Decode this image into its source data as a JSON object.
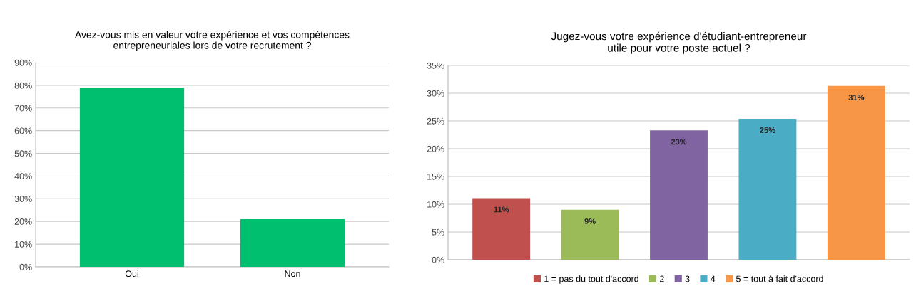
{
  "chart_data": [
    {
      "type": "bar",
      "title": "Avez-vous mis en valeur votre expérience et vos compétences\nentrepreneuriales lors de votre recrutement ?",
      "categories": [
        "Oui",
        "Non"
      ],
      "values": [
        79,
        21
      ],
      "color": "#00bf6f",
      "ylim": [
        0,
        90
      ],
      "yticks": [
        {
          "value": 0,
          "label": "0%"
        },
        {
          "value": 10,
          "label": "10%"
        },
        {
          "value": 20,
          "label": "20%"
        },
        {
          "value": 30,
          "label": "30%"
        },
        {
          "value": 40,
          "label": "40%"
        },
        {
          "value": 50,
          "label": "50%"
        },
        {
          "value": 60,
          "label": "60%"
        },
        {
          "value": 70,
          "label": "70%"
        },
        {
          "value": 80,
          "label": "80%"
        },
        {
          "value": 90,
          "label": "90%"
        }
      ],
      "grid": "y"
    },
    {
      "type": "bar",
      "title": "Jugez-vous votre expérience d'étudiant-entrepreneur\nutile pour votre poste actuel ?",
      "categories": [
        null,
        null,
        null,
        null,
        null
      ],
      "series": [
        {
          "name": "1 = pas du tout d'accord",
          "color": "#c0504d",
          "values": [
            11.1,
            null,
            null,
            null,
            null
          ],
          "value_labels": [
            "11%",
            null,
            null,
            null,
            null
          ]
        },
        {
          "name": "2",
          "color": "#9bbb59",
          "values": [
            null,
            9.0,
            null,
            null,
            null
          ],
          "value_labels": [
            null,
            "9%",
            null,
            null,
            null
          ]
        },
        {
          "name": "3",
          "color": "#8064a2",
          "values": [
            null,
            null,
            23.3,
            null,
            null
          ],
          "value_labels": [
            null,
            null,
            "23%",
            null,
            null
          ]
        },
        {
          "name": "4",
          "color": "#4bacc6",
          "values": [
            null,
            null,
            null,
            25.4,
            null
          ],
          "value_labels": [
            null,
            null,
            null,
            "25%",
            null
          ]
        },
        {
          "name": "5 = tout à fait d'accord",
          "color": "#f79646",
          "values": [
            null,
            null,
            null,
            null,
            31.3
          ],
          "value_labels": [
            null,
            null,
            null,
            null,
            "31%"
          ]
        }
      ],
      "ylim": [
        0,
        35
      ],
      "yticks": [
        {
          "value": 0,
          "label": "0%"
        },
        {
          "value": 5,
          "label": "5%"
        },
        {
          "value": 10,
          "label": "10%"
        },
        {
          "value": 15,
          "label": "15%"
        },
        {
          "value": 20,
          "label": "20%"
        },
        {
          "value": 25,
          "label": "25%"
        },
        {
          "value": 30,
          "label": "30%"
        },
        {
          "value": 35,
          "label": "35%"
        }
      ],
      "grid": "y",
      "legend": "bottom"
    }
  ]
}
